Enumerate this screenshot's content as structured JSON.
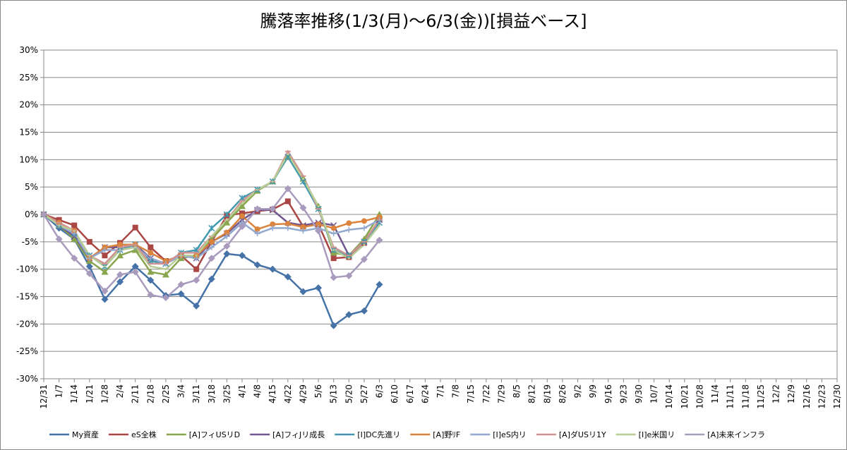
{
  "chart_data": {
    "type": "line",
    "title": "騰落率推移(1/3(月)～6/3(金))[損益ベース]",
    "categories": [
      "12/31",
      "1/7",
      "1/14",
      "1/21",
      "1/28",
      "2/4",
      "2/11",
      "2/18",
      "2/25",
      "3/4",
      "3/11",
      "3/18",
      "3/25",
      "4/1",
      "4/8",
      "4/15",
      "4/22",
      "4/29",
      "5/6",
      "5/13",
      "5/20",
      "5/27",
      "6/3",
      "6/10",
      "6/17",
      "6/24",
      "7/1",
      "7/8",
      "7/15",
      "7/22",
      "7/29",
      "8/5",
      "8/12",
      "8/19",
      "8/26",
      "9/2",
      "9/9",
      "9/16",
      "9/23",
      "9/30",
      "10/7",
      "10/14",
      "10/21",
      "10/28",
      "11/4",
      "11/11",
      "11/18",
      "11/25",
      "12/2",
      "12/9",
      "12/16",
      "12/23",
      "12/30"
    ],
    "ylim": [
      -30,
      30
    ],
    "yticks": [
      {
        "value": -30,
        "label": "-30%"
      },
      {
        "value": -25,
        "label": "-25%"
      },
      {
        "value": -20,
        "label": "-20%"
      },
      {
        "value": -15,
        "label": "-15%"
      },
      {
        "value": -10,
        "label": "-10%"
      },
      {
        "value": -5,
        "label": "-5%"
      },
      {
        "value": 0,
        "label": "0%"
      },
      {
        "value": 5,
        "label": "5%"
      },
      {
        "value": 10,
        "label": "10%"
      },
      {
        "value": 15,
        "label": "15%"
      },
      {
        "value": 20,
        "label": "20%"
      },
      {
        "value": 25,
        "label": "25%"
      },
      {
        "value": 30,
        "label": "30%"
      }
    ],
    "grid": true,
    "legend": "bottom",
    "series": [
      {
        "name": "My資産",
        "color": "#4572a7",
        "values": [
          0,
          -2.5,
          -4.5,
          -9.5,
          -15.5,
          -12.3,
          -9.5,
          -12,
          -14.8,
          -14.5,
          -16.7,
          -11.8,
          -7.2,
          -7.5,
          -9.2,
          -10,
          -11.4,
          -14.1,
          -13.4,
          -20.3,
          -18.3,
          -17.6,
          -12.8,
          null,
          null,
          null,
          null,
          null,
          null,
          null,
          null,
          null,
          null,
          null,
          null,
          null,
          null,
          null,
          null,
          null,
          null,
          null,
          null,
          null,
          null,
          null,
          null,
          null,
          null,
          null,
          null,
          null,
          null
        ]
      },
      {
        "name": "eS全株",
        "color": "#aa4643",
        "values": [
          0,
          -1,
          -2,
          -5,
          -7.5,
          -5.2,
          -2.4,
          -6,
          -8.5,
          -7.5,
          -10,
          -5,
          -0.2,
          0.2,
          0.6,
          0.9,
          2.4,
          -2.2,
          -1.8,
          -8,
          -7.8,
          -5.2,
          -0.9,
          null,
          null,
          null,
          null,
          null,
          null,
          null,
          null,
          null,
          null,
          null,
          null,
          null,
          null,
          null,
          null,
          null,
          null,
          null,
          null,
          null,
          null,
          null,
          null,
          null,
          null,
          null,
          null,
          null,
          null
        ]
      },
      {
        "name": "[A]フィUSリD",
        "color": "#89a54e",
        "values": [
          0,
          -2,
          -4.5,
          -8.5,
          -10.5,
          -7.5,
          -6.5,
          -10.5,
          -11,
          -8,
          -7.5,
          -4.5,
          -1.5,
          1.5,
          4.3,
          6,
          10.5,
          6.5,
          1.5,
          -7,
          -7.5,
          -4.5,
          0,
          null,
          null,
          null,
          null,
          null,
          null,
          null,
          null,
          null,
          null,
          null,
          null,
          null,
          null,
          null,
          null,
          null,
          null,
          null,
          null,
          null,
          null,
          null,
          null,
          null,
          null,
          null,
          null,
          null,
          null
        ]
      },
      {
        "name": "[A]フィJリ成長",
        "color": "#71588f",
        "values": [
          0,
          -2,
          -4,
          -8,
          -6,
          -6,
          -5.5,
          -8,
          -9,
          -7.5,
          -8,
          -5,
          -3.5,
          -1,
          0.8,
          0.8,
          -1.5,
          -2,
          -1.5,
          -2,
          -7.5,
          -5,
          -1,
          null,
          null,
          null,
          null,
          null,
          null,
          null,
          null,
          null,
          null,
          null,
          null,
          null,
          null,
          null,
          null,
          null,
          null,
          null,
          null,
          null,
          null,
          null,
          null,
          null,
          null,
          null,
          null,
          null,
          null
        ]
      },
      {
        "name": "[I]DC先進リ",
        "color": "#4198af",
        "values": [
          0,
          -2,
          -3.5,
          -7.5,
          -9.5,
          -6.5,
          -5.5,
          -8.5,
          -9,
          -7,
          -6.5,
          -2.5,
          0,
          3,
          4.5,
          6,
          10.5,
          6,
          1,
          -6.5,
          -7.5,
          -5,
          -1.5,
          null,
          null,
          null,
          null,
          null,
          null,
          null,
          null,
          null,
          null,
          null,
          null,
          null,
          null,
          null,
          null,
          null,
          null,
          null,
          null,
          null,
          null,
          null,
          null,
          null,
          null,
          null,
          null,
          null,
          null
        ]
      },
      {
        "name": "[A]野ﾘF",
        "color": "#db843d",
        "values": [
          0,
          -1.5,
          -3,
          -8,
          -6,
          -5.5,
          -5.5,
          -7,
          -8.5,
          -7.5,
          -7.5,
          -5,
          -3.3,
          -0.3,
          -2.7,
          -1.8,
          -1.7,
          -2.3,
          -1.8,
          -2.5,
          -1.6,
          -1.2,
          -0.5,
          null,
          null,
          null,
          null,
          null,
          null,
          null,
          null,
          null,
          null,
          null,
          null,
          null,
          null,
          null,
          null,
          null,
          null,
          null,
          null,
          null,
          null,
          null,
          null,
          null,
          null,
          null,
          null,
          null,
          null
        ]
      },
      {
        "name": "[I]eS内リ",
        "color": "#93a9cf",
        "values": [
          0,
          -2,
          -3.5,
          -8,
          -6.5,
          -6.5,
          -6,
          -8,
          -9,
          -7.5,
          -8,
          -6,
          -4,
          -1.5,
          -3.5,
          -2.5,
          -2.5,
          -3,
          -2.5,
          -3.5,
          -2.8,
          -2.5,
          -1,
          null,
          null,
          null,
          null,
          null,
          null,
          null,
          null,
          null,
          null,
          null,
          null,
          null,
          null,
          null,
          null,
          null,
          null,
          null,
          null,
          null,
          null,
          null,
          null,
          null,
          null,
          null,
          null,
          null,
          null
        ]
      },
      {
        "name": "[A]ダUSリ1Y",
        "color": "#d19392",
        "values": [
          0,
          -1.5,
          -3,
          -7.5,
          -9,
          -6,
          -5.5,
          -9,
          -9,
          -7,
          -7,
          -4,
          -1,
          2.5,
          4.5,
          6,
          11.5,
          7,
          1,
          -6,
          -7.5,
          -5,
          -1,
          null,
          null,
          null,
          null,
          null,
          null,
          null,
          null,
          null,
          null,
          null,
          null,
          null,
          null,
          null,
          null,
          null,
          null,
          null,
          null,
          null,
          null,
          null,
          null,
          null,
          null,
          null,
          null,
          null,
          null
        ]
      },
      {
        "name": "[I]e米国リ",
        "color": "#b9cd96",
        "values": [
          0,
          -2,
          -3,
          -7.5,
          -9.5,
          -6.5,
          -6,
          -9.5,
          -10,
          -7.5,
          -7.5,
          -4,
          -1,
          2,
          4.5,
          6,
          11,
          6.5,
          1.5,
          -6.5,
          -8,
          -5.5,
          -2,
          null,
          null,
          null,
          null,
          null,
          null,
          null,
          null,
          null,
          null,
          null,
          null,
          null,
          null,
          null,
          null,
          null,
          null,
          null,
          null,
          null,
          null,
          null,
          null,
          null,
          null,
          null,
          null,
          null,
          null
        ]
      },
      {
        "name": "[A]未来インフラ",
        "color": "#a99bbd",
        "values": [
          0,
          -4.5,
          -8,
          -10.8,
          -14,
          -11,
          -10.5,
          -14.7,
          -15.2,
          -12.8,
          -12,
          -8,
          -5.8,
          -2.2,
          1,
          1,
          4.7,
          1.2,
          -3,
          -11.5,
          -11.2,
          -8.2,
          -4.7,
          null,
          null,
          null,
          null,
          null,
          null,
          null,
          null,
          null,
          null,
          null,
          null,
          null,
          null,
          null,
          null,
          null,
          null,
          null,
          null,
          null,
          null,
          null,
          null,
          null,
          null,
          null,
          null,
          null,
          null
        ]
      }
    ]
  }
}
